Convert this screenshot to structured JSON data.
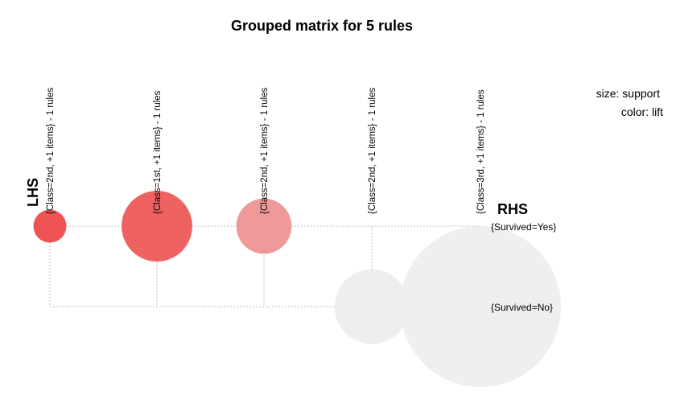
{
  "chart_data": {
    "type": "grouped-matrix",
    "title": "Grouped matrix for 5 rules",
    "lhs_label": "LHS",
    "rhs_label": "RHS",
    "legend": {
      "size": "size: support",
      "color": "color: lift"
    },
    "columns": [
      "{Class=2nd, +1 items} - 1 rules",
      "{Class=1st, +1 items} - 1 rules",
      "{Class=2nd, +1 items} - 1 rules",
      "{Class=2nd, +1 items} - 1 rules",
      "{Class=3rd, +1 items} - 1 rules"
    ],
    "rows": [
      "{Survived=Yes}",
      "{Survived=No}"
    ],
    "rules": [
      {
        "col": 0,
        "row": 0,
        "support": 0.042,
        "lift": 3.0
      },
      {
        "col": 1,
        "row": 0,
        "support": 0.193,
        "lift": 2.8
      },
      {
        "col": 2,
        "row": 0,
        "support": 0.118,
        "lift": 2.1
      },
      {
        "col": 3,
        "row": 1,
        "support": 0.214,
        "lift": 1.02
      },
      {
        "col": 4,
        "row": 1,
        "support": 1.0,
        "lift": 1.0
      }
    ],
    "color_scale": {
      "low": "#eeeeee",
      "high": "#ee4444"
    }
  }
}
